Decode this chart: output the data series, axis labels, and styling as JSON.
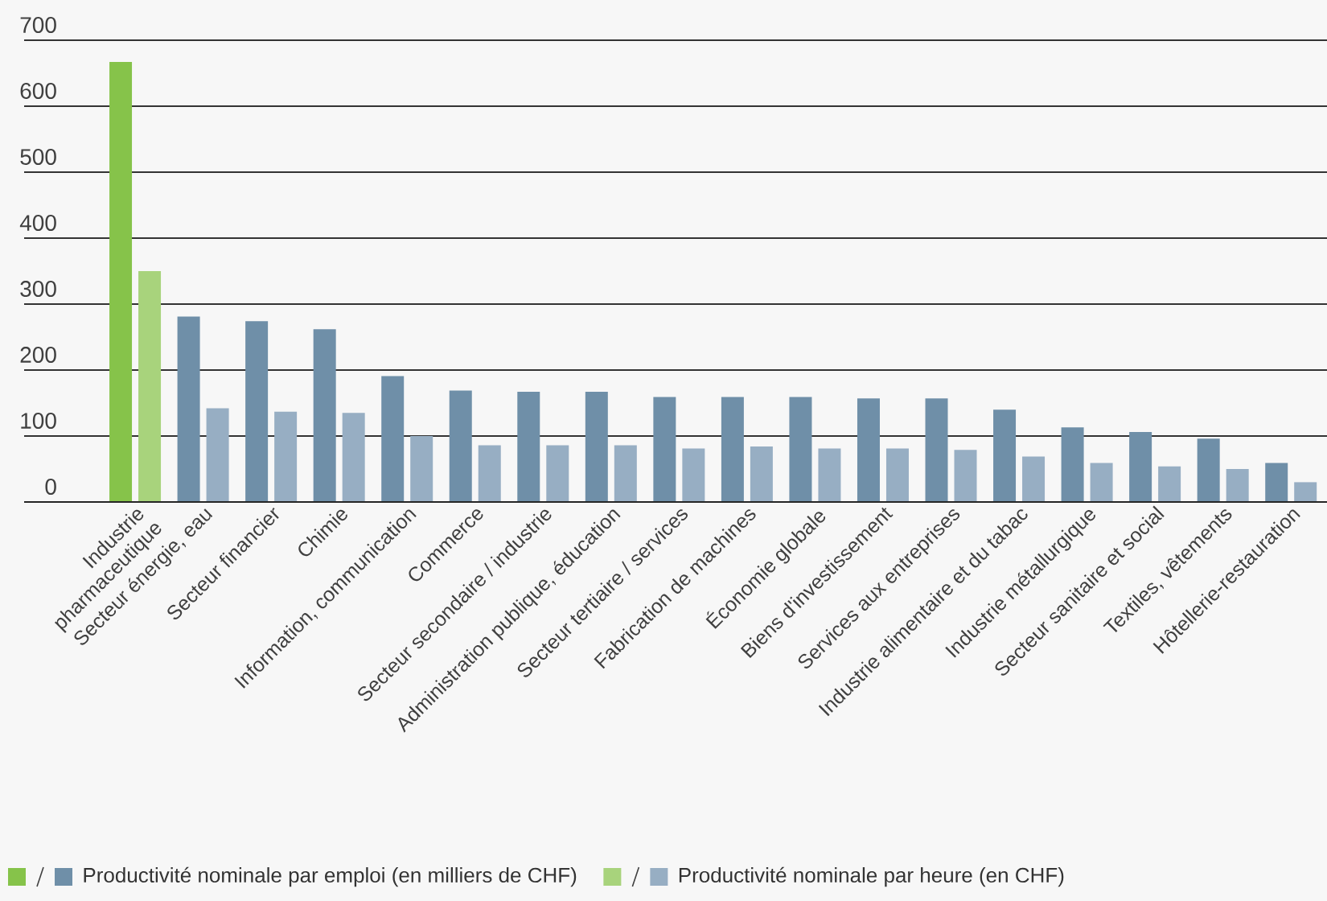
{
  "chart_data": {
    "type": "bar",
    "categories": [
      "Industrie pharmaceutique",
      "Secteur énergie, eau",
      "Secteur financier",
      "Chimie",
      "Information, communication",
      "Commerce",
      "Secteur secondaire / industrie",
      "Administration publique, éducation",
      "Secteur tertiaire / services",
      "Fabrication de machines",
      "Économie globale",
      "Biens d'investissement",
      "Services aux entreprises",
      "Industrie alimentaire et du tabac",
      "Industrie métallurgique",
      "Secteur sanitaire et social",
      "Textiles, vêtements",
      "Hôtellerie-restauration"
    ],
    "series": [
      {
        "name": "Productivité nominale par emploi (en milliers de CHF)",
        "color": "#6f8fa8",
        "colors": [
          "#86c34a",
          "#6f8fa8",
          "#6f8fa8",
          "#6f8fa8",
          "#6f8fa8",
          "#6f8fa8",
          "#6f8fa8",
          "#6f8fa8",
          "#6f8fa8",
          "#6f8fa8",
          "#6f8fa8",
          "#6f8fa8",
          "#6f8fa8",
          "#6f8fa8",
          "#6f8fa8",
          "#6f8fa8",
          "#6f8fa8",
          "#6f8fa8"
        ],
        "values": [
          667,
          281,
          274,
          262,
          191,
          169,
          167,
          167,
          159,
          159,
          159,
          157,
          157,
          140,
          113,
          106,
          96,
          59
        ]
      },
      {
        "name": "Productivité nominale par heure (en CHF)",
        "color": "#97aec3",
        "colors": [
          "#a8d37c",
          "#97aec3",
          "#97aec3",
          "#97aec3",
          "#97aec3",
          "#97aec3",
          "#97aec3",
          "#97aec3",
          "#97aec3",
          "#97aec3",
          "#97aec3",
          "#97aec3",
          "#97aec3",
          "#97aec3",
          "#97aec3",
          "#97aec3",
          "#97aec3",
          "#97aec3"
        ],
        "values": [
          350,
          142,
          137,
          135,
          100,
          86,
          86,
          86,
          81,
          84,
          81,
          81,
          79,
          69,
          59,
          54,
          50,
          30
        ]
      }
    ],
    "ylim": [
      0,
      700
    ],
    "yticks": [
      0,
      100,
      200,
      300,
      400,
      500,
      600,
      700
    ],
    "grid": "y",
    "legend": "bottom"
  }
}
